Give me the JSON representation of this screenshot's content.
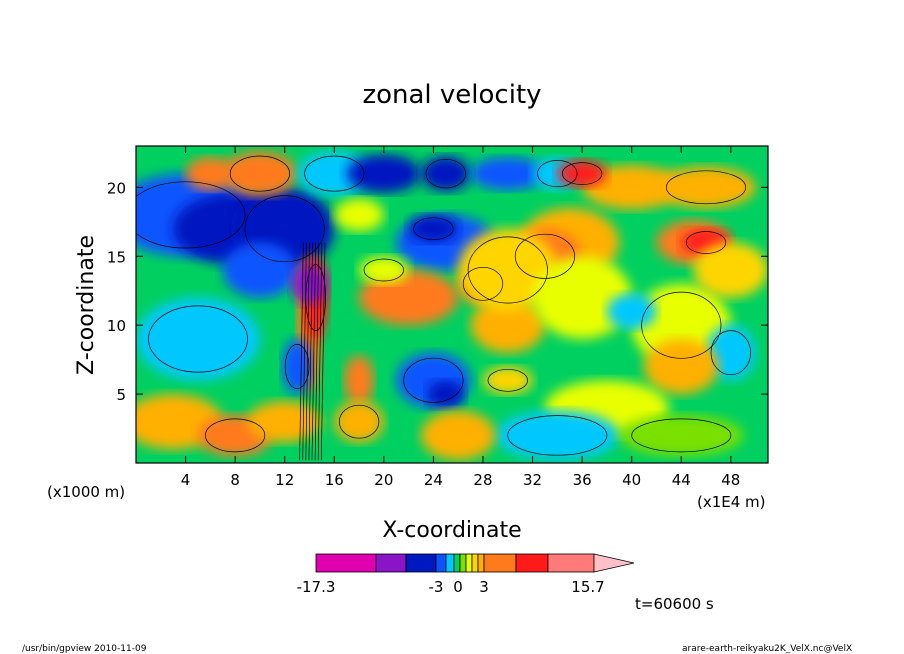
{
  "chart_data": {
    "type": "heatmap",
    "title": "zonal velocity",
    "xlabel": "X-coordinate",
    "ylabel": "Z-coordinate",
    "x_unit_label": "(x1E4 m)",
    "y_unit_label": "(x1000 m)",
    "xlim": [
      0,
      51
    ],
    "ylim": [
      0,
      23
    ],
    "x_ticks": [
      4,
      8,
      12,
      16,
      20,
      24,
      28,
      32,
      36,
      40,
      44,
      48
    ],
    "y_ticks": [
      5,
      10,
      15,
      20
    ],
    "colorbar": {
      "colors": [
        "#e000b0",
        "#8a14c8",
        "#0018c0",
        "#0a55ff",
        "#00c8ff",
        "#00d060",
        "#7ae000",
        "#e8ff00",
        "#ffd500",
        "#ffb000",
        "#ff7a1a",
        "#ff1a1a",
        "#ff7a78"
      ],
      "extend_color": "#ffc0c8",
      "tick_labels": [
        "-17.3",
        "-3",
        "0",
        "3",
        "15.7"
      ]
    },
    "annotation": "t=60600 s",
    "footer_left": "/usr/bin/gpview  2010-11-09",
    "footer_right": "arare-earth-reikyaku2K_VelX.nc@VelX"
  }
}
